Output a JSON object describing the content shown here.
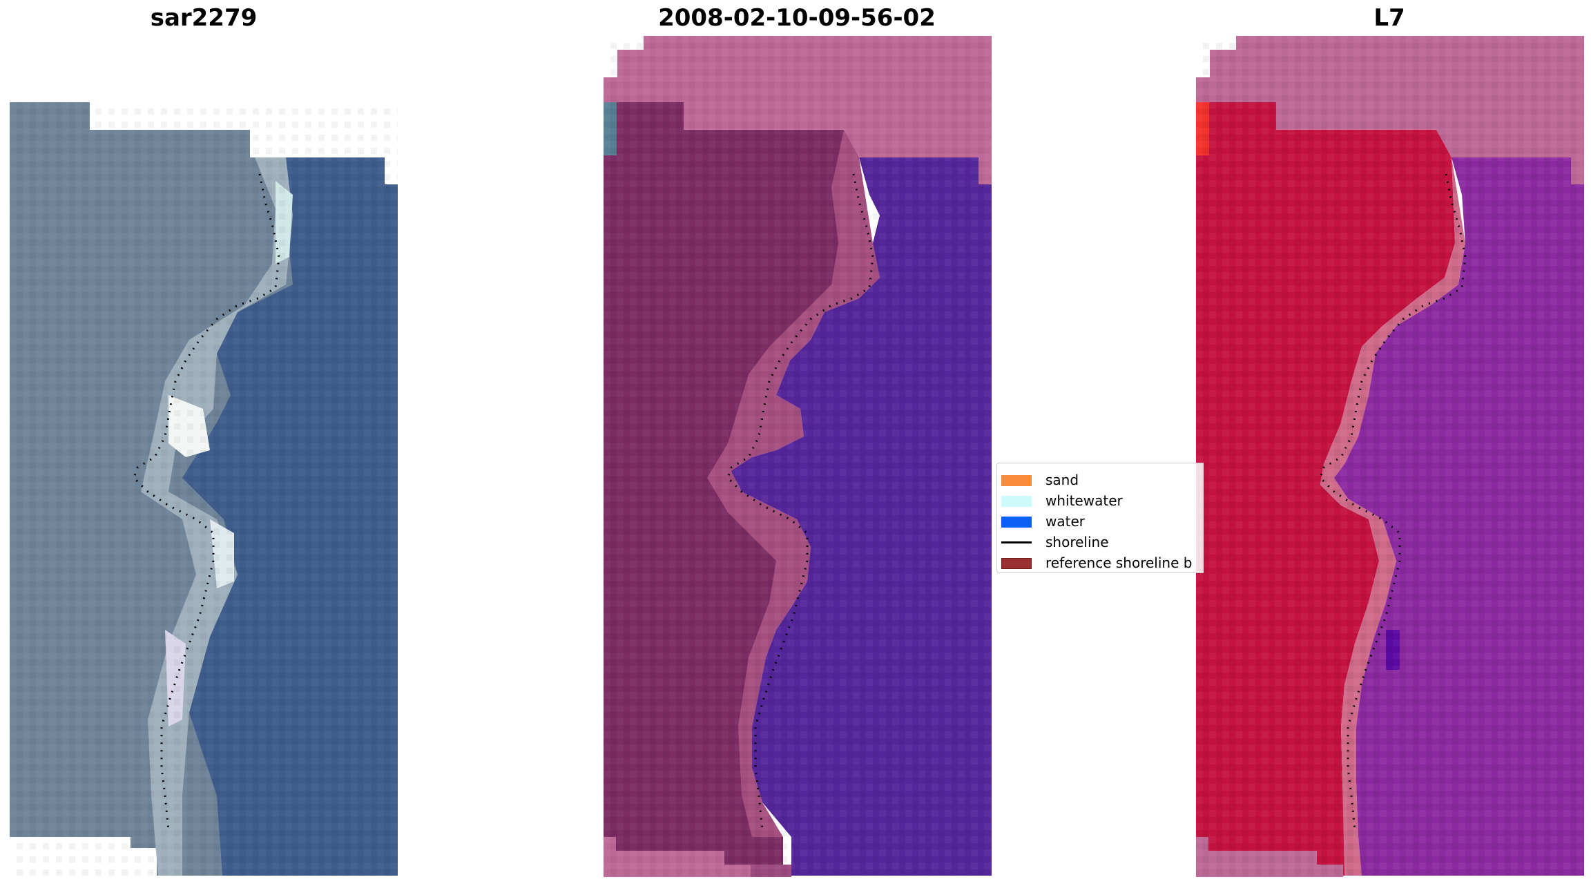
{
  "panels": [
    {
      "title": "sar2279",
      "icon": "satellite-rgb-image"
    },
    {
      "title": "2008-02-10-09-56-02",
      "icon": "classified-image-overlay"
    },
    {
      "title": "L7",
      "icon": "index-image-overlay"
    }
  ],
  "legend": {
    "items": [
      {
        "label": "sand",
        "color": "#f98c3c",
        "kind": "patch"
      },
      {
        "label": "whitewater",
        "color": "#cdfbfb",
        "kind": "patch"
      },
      {
        "label": "water",
        "color": "#0a5ff5",
        "kind": "patch"
      },
      {
        "label": "shoreline",
        "color": "#000000",
        "kind": "line"
      },
      {
        "label": "reference shoreline b",
        "color": "#9a2f2f",
        "kind": "patch"
      }
    ]
  },
  "colors": {
    "panel1_water": "#3d5b8b",
    "panel1_land": "#6e8499",
    "panel2_water": "#54259a",
    "panel2_land": "#7b2b63",
    "panel2_overlay": "#bc6896",
    "panel3_water": "#8a2aa0",
    "panel3_land": "#c50f3f",
    "panel3_overlay": "#bc6896"
  }
}
